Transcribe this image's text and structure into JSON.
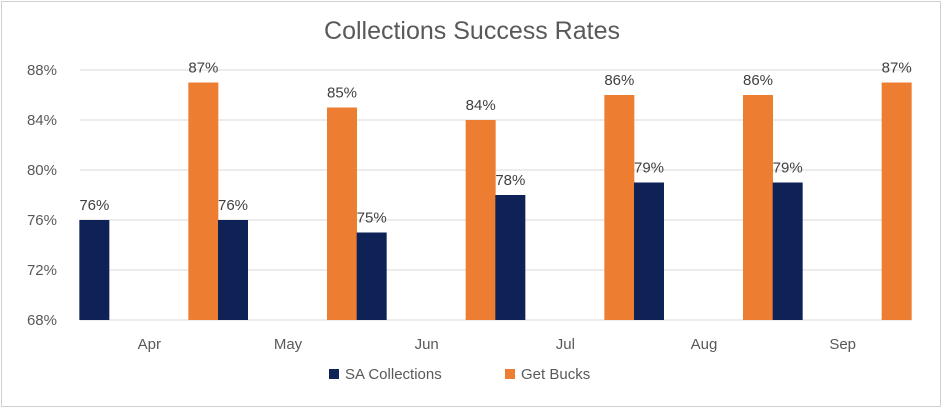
{
  "chart_data": {
    "type": "bar",
    "title": "Collections Success Rates",
    "categories": [
      "Apr",
      "May",
      "Jun",
      "Jul",
      "Aug",
      "Sep"
    ],
    "series": [
      {
        "name": "SA Collections",
        "values": [
          76,
          76,
          75,
          78,
          79,
          79
        ],
        "color": "#0e2258"
      },
      {
        "name": "Get Bucks",
        "values": [
          87,
          85,
          84,
          86,
          86,
          87
        ],
        "color": "#ed7d31"
      }
    ],
    "ylim": [
      68,
      88
    ],
    "yticks": [
      "68%",
      "72%",
      "76%",
      "80%",
      "84%",
      "88%"
    ],
    "value_suffix": "%",
    "grid": true,
    "legend_position": "bottom",
    "xlabel": "",
    "ylabel": ""
  },
  "colors": {
    "grid": "#d9d9d9",
    "text": "#595959"
  }
}
